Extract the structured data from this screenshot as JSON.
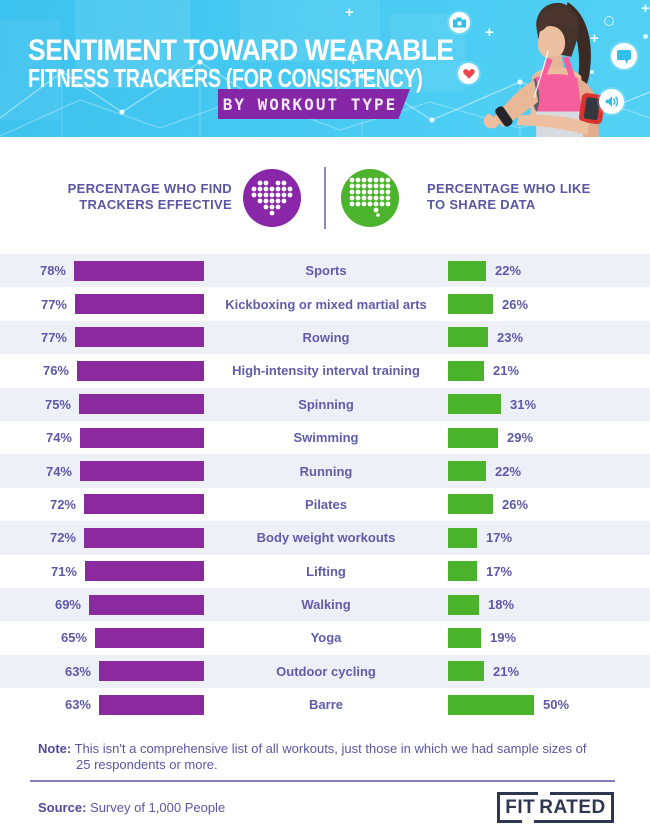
{
  "header": {
    "title_line1": "SENTIMENT TOWARD WEARABLE",
    "title_line2": "FITNESS TRACKERS (FOR CONSISTENCY)",
    "banner": "BY WORKOUT TYPE",
    "decor_icons": [
      "camera-icon",
      "heart-icon",
      "speech-bubble-icon",
      "speaker-icon"
    ]
  },
  "legend": {
    "left_line1": "PERCENTAGE WHO FIND",
    "left_line2": "TRACKERS EFFECTIVE",
    "left_icon": "pixel-heart-icon",
    "right_line1": "PERCENTAGE WHO LIKE",
    "right_line2": "TO SHARE DATA",
    "right_icon": "pixel-speech-bubble-icon"
  },
  "chart_data": {
    "type": "bar",
    "title": "Sentiment Toward Wearable Fitness Trackers (For Consistency)",
    "subtitle": "By Workout Type",
    "orientation": "horizontal-diverging",
    "categories": [
      "Sports",
      "Kickboxing or mixed martial arts",
      "Rowing",
      "High-intensity interval training",
      "Spinning",
      "Swimming",
      "Running",
      "Pilates",
      "Body weight workouts",
      "Lifting",
      "Walking",
      "Yoga",
      "Outdoor cycling",
      "Barre"
    ],
    "series": [
      {
        "name": "Percentage who find trackers effective",
        "color": "#8a2a9e",
        "side": "left",
        "values": [
          78,
          77,
          77,
          76,
          75,
          74,
          74,
          72,
          72,
          71,
          69,
          65,
          63,
          63
        ]
      },
      {
        "name": "Percentage who like to share data",
        "color": "#4bb32b",
        "side": "right",
        "values": [
          22,
          26,
          23,
          21,
          31,
          29,
          22,
          26,
          17,
          17,
          18,
          19,
          21,
          50
        ]
      }
    ],
    "value_suffix": "%",
    "layout": {
      "row_stripe_color": "#edf1f7",
      "labels": "centered between bars",
      "grid": false,
      "legend_position": "top"
    }
  },
  "note": {
    "label": "Note:",
    "text": "This isn't a comprehensive list of all workouts, just those in which we had sample sizes of 25 respondents or more."
  },
  "source": {
    "label": "Source:",
    "text": "Survey of 1,000 People"
  },
  "logo": {
    "part1": "FIT",
    "part2": "RATED"
  },
  "colors": {
    "header_cyan": "#41c7f0",
    "banner_purple": "#8526a6",
    "bar_purple": "#8a2a9e",
    "bar_green": "#4bb32b",
    "legend_circle_purple": "#8927a8",
    "legend_circle_green": "#4cb32c",
    "text_indigo": "#5c58a6",
    "stripe": "#edf1f7",
    "logo_navy": "#2d3850",
    "heart_red": "#e8474b"
  }
}
